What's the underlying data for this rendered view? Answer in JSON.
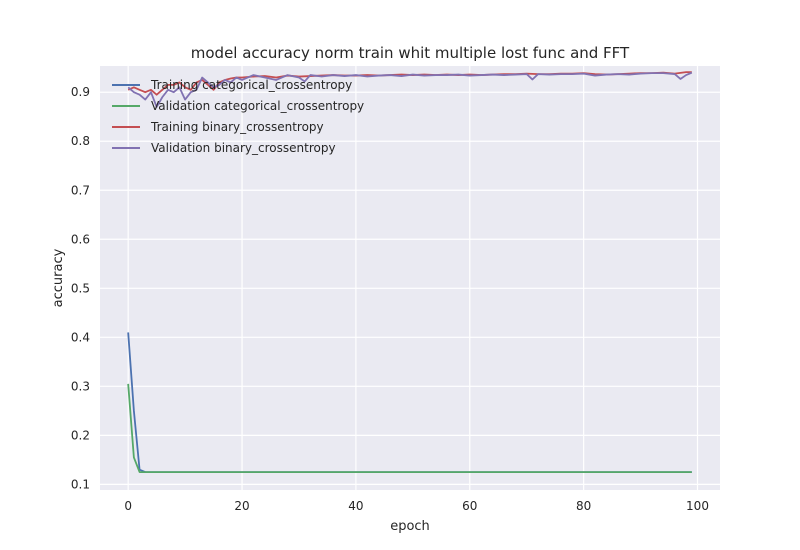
{
  "chart_data": {
    "type": "line",
    "title": "model accuracy norm train whit multiple lost func and FFT",
    "xlabel": "epoch",
    "ylabel": "accuracy",
    "xlim": [
      -4.95,
      103.95
    ],
    "ylim": [
      0.0885,
      0.9535
    ],
    "xticks": [
      0,
      20,
      40,
      60,
      80,
      100
    ],
    "yticks": [
      0.1,
      0.2,
      0.3,
      0.4,
      0.5,
      0.6,
      0.7,
      0.8,
      0.9
    ],
    "grid": true,
    "legend_position": "top-left",
    "background": "#EAEAF2",
    "series": [
      {
        "name": "Training categorical_crossentropy",
        "color": "#4C72B0",
        "points": [
          [
            0,
            0.41
          ],
          [
            1,
            0.25
          ],
          [
            2,
            0.13
          ],
          [
            3,
            0.125
          ],
          [
            4,
            0.125
          ],
          [
            99,
            0.125
          ]
        ]
      },
      {
        "name": "Validation categorical_crossentropy",
        "color": "#55A868",
        "points": [
          [
            0,
            0.305
          ],
          [
            1,
            0.155
          ],
          [
            2,
            0.125
          ],
          [
            3,
            0.125
          ],
          [
            99,
            0.125
          ]
        ]
      },
      {
        "name": "Training binary_crossentropy",
        "color": "#C44E52",
        "points": [
          [
            0,
            0.905
          ],
          [
            1,
            0.91
          ],
          [
            2,
            0.905
          ],
          [
            3,
            0.9
          ],
          [
            4,
            0.905
          ],
          [
            5,
            0.895
          ],
          [
            6,
            0.905
          ],
          [
            7,
            0.915
          ],
          [
            8,
            0.915
          ],
          [
            9,
            0.92
          ],
          [
            10,
            0.91
          ],
          [
            11,
            0.905
          ],
          [
            12,
            0.92
          ],
          [
            13,
            0.925
          ],
          [
            14,
            0.915
          ],
          [
            15,
            0.905
          ],
          [
            16,
            0.92
          ],
          [
            17,
            0.925
          ],
          [
            18,
            0.928
          ],
          [
            19,
            0.93
          ],
          [
            20,
            0.93
          ],
          [
            22,
            0.932
          ],
          [
            24,
            0.933
          ],
          [
            26,
            0.93
          ],
          [
            28,
            0.934
          ],
          [
            30,
            0.932
          ],
          [
            32,
            0.933
          ],
          [
            34,
            0.934
          ],
          [
            36,
            0.935
          ],
          [
            38,
            0.934
          ],
          [
            40,
            0.934
          ],
          [
            42,
            0.935
          ],
          [
            44,
            0.934
          ],
          [
            46,
            0.935
          ],
          [
            48,
            0.936
          ],
          [
            50,
            0.935
          ],
          [
            52,
            0.936
          ],
          [
            54,
            0.935
          ],
          [
            56,
            0.936
          ],
          [
            58,
            0.935
          ],
          [
            60,
            0.936
          ],
          [
            62,
            0.935
          ],
          [
            64,
            0.936
          ],
          [
            66,
            0.937
          ],
          [
            68,
            0.937
          ],
          [
            70,
            0.938
          ],
          [
            72,
            0.937
          ],
          [
            74,
            0.937
          ],
          [
            76,
            0.938
          ],
          [
            78,
            0.938
          ],
          [
            80,
            0.939
          ],
          [
            82,
            0.937
          ],
          [
            84,
            0.936
          ],
          [
            86,
            0.937
          ],
          [
            88,
            0.938
          ],
          [
            90,
            0.939
          ],
          [
            92,
            0.939
          ],
          [
            94,
            0.94
          ],
          [
            96,
            0.938
          ],
          [
            98,
            0.941
          ],
          [
            99,
            0.941
          ]
        ]
      },
      {
        "name": "Validation binary_crossentropy",
        "color": "#8172B2",
        "points": [
          [
            0,
            0.91
          ],
          [
            1,
            0.9
          ],
          [
            2,
            0.895
          ],
          [
            3,
            0.885
          ],
          [
            4,
            0.9
          ],
          [
            5,
            0.87
          ],
          [
            6,
            0.89
          ],
          [
            7,
            0.905
          ],
          [
            8,
            0.9
          ],
          [
            9,
            0.91
          ],
          [
            10,
            0.885
          ],
          [
            11,
            0.9
          ],
          [
            12,
            0.905
          ],
          [
            13,
            0.93
          ],
          [
            14,
            0.92
          ],
          [
            15,
            0.91
          ],
          [
            16,
            0.915
          ],
          [
            17,
            0.925
          ],
          [
            18,
            0.92
          ],
          [
            19,
            0.93
          ],
          [
            20,
            0.925
          ],
          [
            22,
            0.935
          ],
          [
            24,
            0.93
          ],
          [
            26,
            0.925
          ],
          [
            28,
            0.935
          ],
          [
            30,
            0.93
          ],
          [
            31,
            0.922
          ],
          [
            32,
            0.935
          ],
          [
            34,
            0.932
          ],
          [
            36,
            0.935
          ],
          [
            38,
            0.933
          ],
          [
            40,
            0.935
          ],
          [
            42,
            0.932
          ],
          [
            44,
            0.934
          ],
          [
            46,
            0.935
          ],
          [
            48,
            0.933
          ],
          [
            50,
            0.936
          ],
          [
            52,
            0.934
          ],
          [
            54,
            0.935
          ],
          [
            56,
            0.935
          ],
          [
            58,
            0.936
          ],
          [
            60,
            0.934
          ],
          [
            62,
            0.935
          ],
          [
            64,
            0.936
          ],
          [
            66,
            0.935
          ],
          [
            68,
            0.936
          ],
          [
            70,
            0.937
          ],
          [
            71,
            0.926
          ],
          [
            72,
            0.937
          ],
          [
            74,
            0.936
          ],
          [
            76,
            0.937
          ],
          [
            78,
            0.937
          ],
          [
            80,
            0.938
          ],
          [
            82,
            0.934
          ],
          [
            84,
            0.936
          ],
          [
            86,
            0.937
          ],
          [
            88,
            0.936
          ],
          [
            90,
            0.938
          ],
          [
            92,
            0.939
          ],
          [
            94,
            0.939
          ],
          [
            96,
            0.937
          ],
          [
            97,
            0.927
          ],
          [
            98,
            0.935
          ],
          [
            99,
            0.94
          ]
        ]
      }
    ]
  }
}
